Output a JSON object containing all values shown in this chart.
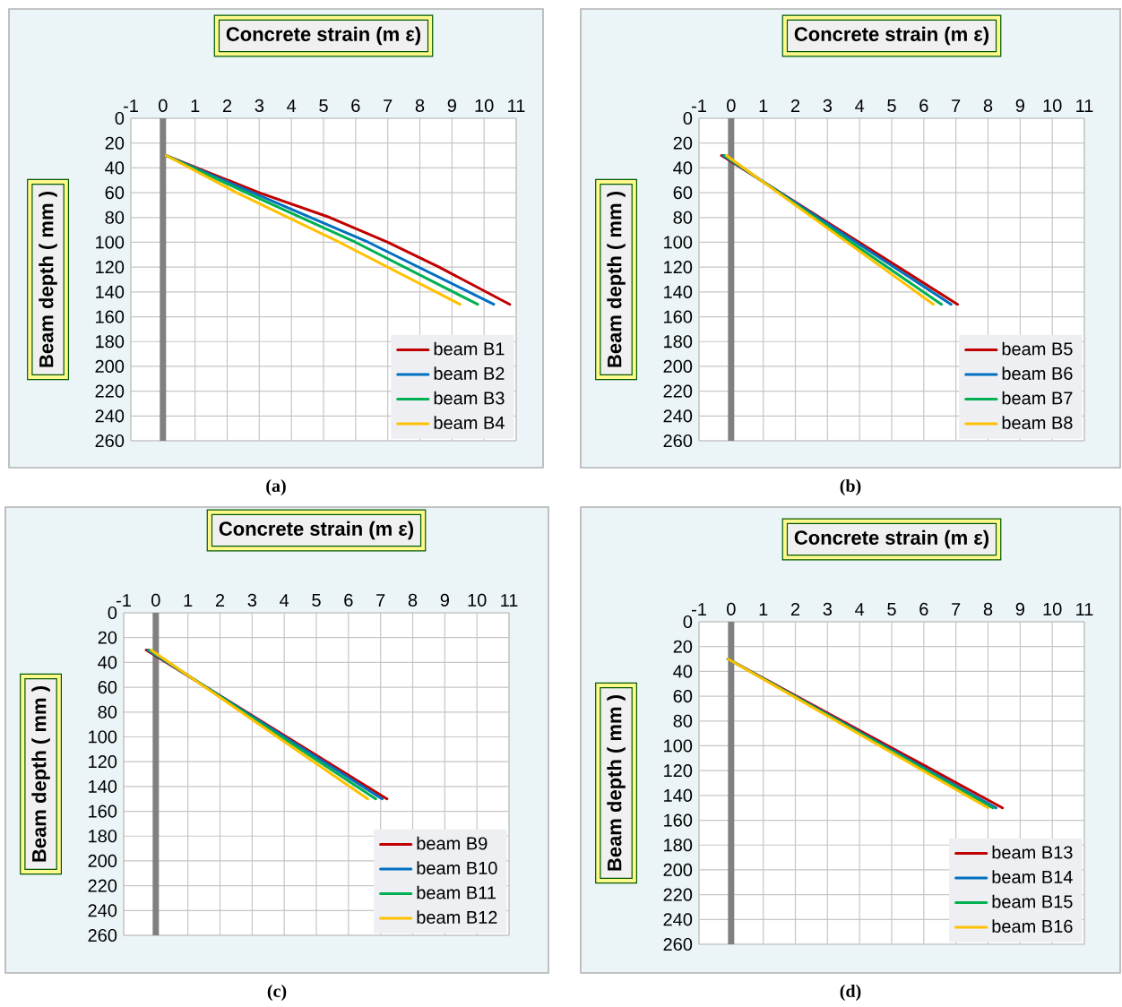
{
  "chart_data": [
    {
      "type": "line",
      "title": "Concrete strain (m ε)",
      "ylabel": "Beam depth ( mm )",
      "annotations": [
        "(a)"
      ],
      "xlim": [
        -1,
        11
      ],
      "xticks": [
        -1,
        0,
        1,
        2,
        3,
        4,
        5,
        6,
        7,
        8,
        9,
        10,
        11
      ],
      "ylim": [
        260,
        0
      ],
      "yticks": [
        0,
        20,
        40,
        60,
        80,
        100,
        120,
        140,
        160,
        180,
        200,
        220,
        240,
        260
      ],
      "grid": true,
      "legend": "bottom right",
      "marker": "none",
      "line_style": "solid",
      "series": [
        {
          "name": "beam B1",
          "color": "#c00000",
          "x": [
            0.1,
            3.0,
            5.2,
            7.0,
            8.6,
            10.8
          ],
          "values": [
            30,
            60,
            80,
            100,
            120,
            150
          ]
        },
        {
          "name": "beam B2",
          "color": "#0070c0",
          "x": [
            0.1,
            2.8,
            6.4,
            10.3
          ],
          "values": [
            30,
            60,
            100,
            150
          ]
        },
        {
          "name": "beam B3",
          "color": "#00b050",
          "x": [
            0.1,
            2.6,
            6.0,
            9.8
          ],
          "values": [
            30,
            60,
            100,
            150
          ]
        },
        {
          "name": "beam B4",
          "color": "#ffc000",
          "x": [
            0.1,
            2.3,
            5.5,
            9.25
          ],
          "values": [
            30,
            60,
            100,
            150
          ]
        }
      ]
    },
    {
      "type": "line",
      "title": "Concrete strain (m ε)",
      "ylabel": "Beam depth ( mm )",
      "annotations": [
        "(b)"
      ],
      "xlim": [
        -1,
        11
      ],
      "xticks": [
        -1,
        0,
        1,
        2,
        3,
        4,
        5,
        6,
        7,
        8,
        9,
        10,
        11
      ],
      "ylim": [
        260,
        0
      ],
      "yticks": [
        0,
        20,
        40,
        60,
        80,
        100,
        120,
        140,
        160,
        180,
        200,
        220,
        240,
        260
      ],
      "grid": true,
      "legend": "bottom right",
      "marker": "none",
      "line_style": "solid",
      "series": [
        {
          "name": "beam B5",
          "color": "#c00000",
          "x": [
            -0.3,
            7.05
          ],
          "values": [
            30,
            150
          ]
        },
        {
          "name": "beam B6",
          "color": "#0070c0",
          "x": [
            -0.25,
            6.85
          ],
          "values": [
            30,
            150
          ]
        },
        {
          "name": "beam B7",
          "color": "#00b050",
          "x": [
            -0.2,
            6.55
          ],
          "values": [
            30,
            150
          ]
        },
        {
          "name": "beam B8",
          "color": "#ffc000",
          "x": [
            -0.15,
            6.3
          ],
          "values": [
            30,
            150
          ]
        }
      ]
    },
    {
      "type": "line",
      "title": "Concrete strain (m ε)",
      "ylabel": "Beam depth ( mm )",
      "annotations": [
        "(c)"
      ],
      "xlim": [
        -1,
        11
      ],
      "xticks": [
        -1,
        0,
        1,
        2,
        3,
        4,
        5,
        6,
        7,
        8,
        9,
        10,
        11
      ],
      "ylim": [
        260,
        0
      ],
      "yticks": [
        0,
        20,
        40,
        60,
        80,
        100,
        120,
        140,
        160,
        180,
        200,
        220,
        240,
        260
      ],
      "grid": true,
      "legend": "bottom right",
      "marker": "none",
      "line_style": "solid",
      "series": [
        {
          "name": "beam B9",
          "color": "#c00000",
          "x": [
            -0.3,
            7.2
          ],
          "values": [
            30,
            150
          ]
        },
        {
          "name": "beam B10",
          "color": "#0070c0",
          "x": [
            -0.25,
            7.05
          ],
          "values": [
            30,
            150
          ]
        },
        {
          "name": "beam B11",
          "color": "#00b050",
          "x": [
            -0.2,
            6.85
          ],
          "values": [
            30,
            150
          ]
        },
        {
          "name": "beam B12",
          "color": "#ffc000",
          "x": [
            -0.15,
            6.6
          ],
          "values": [
            30,
            150
          ]
        }
      ]
    },
    {
      "type": "line",
      "title": "Concrete strain (m ε)",
      "ylabel": "Beam depth ( mm )",
      "annotations": [
        "(d)"
      ],
      "xlim": [
        -1,
        11
      ],
      "xticks": [
        -1,
        0,
        1,
        2,
        3,
        4,
        5,
        6,
        7,
        8,
        9,
        10,
        11
      ],
      "ylim": [
        260,
        0
      ],
      "yticks": [
        0,
        20,
        40,
        60,
        80,
        100,
        120,
        140,
        160,
        180,
        200,
        220,
        240,
        260
      ],
      "grid": true,
      "legend": "bottom right",
      "marker": "none",
      "line_style": "solid",
      "series": [
        {
          "name": "beam B13",
          "color": "#c00000",
          "x": [
            -0.1,
            8.45
          ],
          "values": [
            30,
            150
          ]
        },
        {
          "name": "beam B14",
          "color": "#0070c0",
          "x": [
            -0.1,
            8.25
          ],
          "values": [
            30,
            150
          ]
        },
        {
          "name": "beam B15",
          "color": "#00b050",
          "x": [
            -0.1,
            8.15
          ],
          "values": [
            30,
            150
          ]
        },
        {
          "name": "beam B16",
          "color": "#ffc000",
          "x": [
            -0.1,
            8.0
          ],
          "values": [
            30,
            150
          ]
        }
      ]
    }
  ]
}
